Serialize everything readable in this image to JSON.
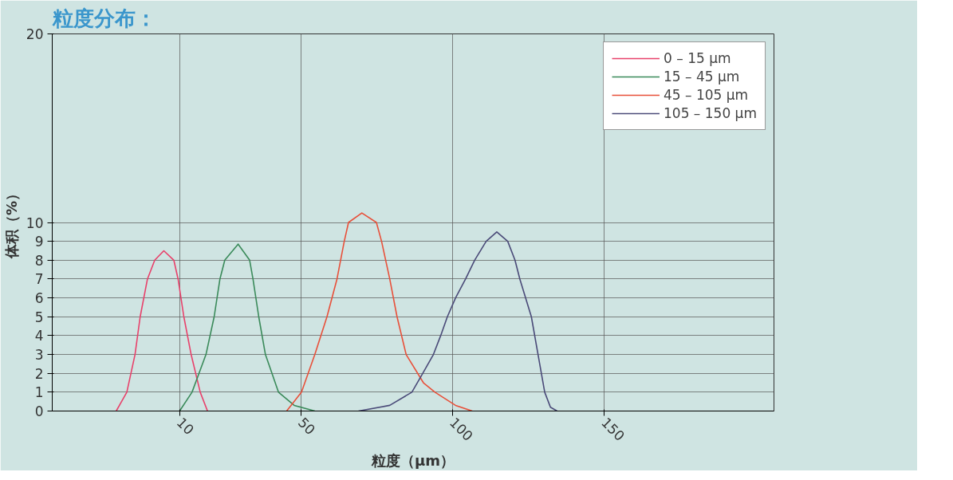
{
  "chart_data": {
    "type": "line",
    "title": "粒度分布：",
    "xlabel": "粒度（μm）",
    "ylabel": "体积（%）",
    "xlim": [
      -32,
      206
    ],
    "ylim": [
      0,
      20
    ],
    "xticks": [
      10,
      50,
      100,
      150
    ],
    "yticks": [
      0,
      1,
      2,
      3,
      4,
      5,
      6,
      7,
      8,
      9,
      10,
      20
    ],
    "grid": true,
    "legend": "top right",
    "marker": "none",
    "line_style": "solid",
    "series": [
      {
        "name": "0 – 15 μm",
        "color": "#e8406a",
        "x": [
          -10.9,
          -7.4,
          -4.7,
          -3.0,
          -0.6,
          1.8,
          4.8,
          8.1,
          9.5,
          11.4,
          13.8,
          16.8,
          19.2
        ],
        "values": [
          0,
          1,
          3,
          5,
          7,
          8,
          8.5,
          8,
          7,
          5,
          3,
          1,
          0
        ]
      },
      {
        "name": "15 – 45 μm",
        "color": "#3a8a5a",
        "x": [
          10,
          14.1,
          18.7,
          21.4,
          23.3,
          24.9,
          29.3,
          33.1,
          34.2,
          36.1,
          38.3,
          42.6,
          47.8,
          54.6
        ],
        "values": [
          0,
          1,
          3,
          5,
          7,
          8,
          8.85,
          8,
          7,
          5,
          3,
          1,
          0.3,
          0
        ]
      },
      {
        "name": "45 – 105 μm",
        "color": "#e8503a",
        "x": [
          45.3,
          50.2,
          54.6,
          58.6,
          61.9,
          64.3,
          65.7,
          70.1,
          74.9,
          76.6,
          79.3,
          81.7,
          84.7,
          90.4,
          94.2,
          101,
          106.5
        ],
        "values": [
          0,
          1,
          3,
          5,
          7,
          9,
          10,
          10.5,
          10,
          9,
          7,
          5,
          3,
          1.5,
          1,
          0.3,
          0
        ]
      },
      {
        "name": "105 – 150 μm",
        "color": "#4a4a78",
        "x": [
          69,
          79.3,
          86.6,
          90.2,
          93.7,
          96.1,
          98.3,
          101,
          104.3,
          107.3,
          111.1,
          114.6,
          118.2,
          120.6,
          122.2,
          126,
          128.2,
          130.4,
          132.3,
          134.5
        ],
        "values": [
          0,
          0.3,
          1,
          2,
          3,
          4,
          5,
          6,
          7,
          8,
          9,
          9.5,
          9,
          8,
          7,
          5,
          3,
          1,
          0.2,
          0
        ]
      }
    ]
  }
}
